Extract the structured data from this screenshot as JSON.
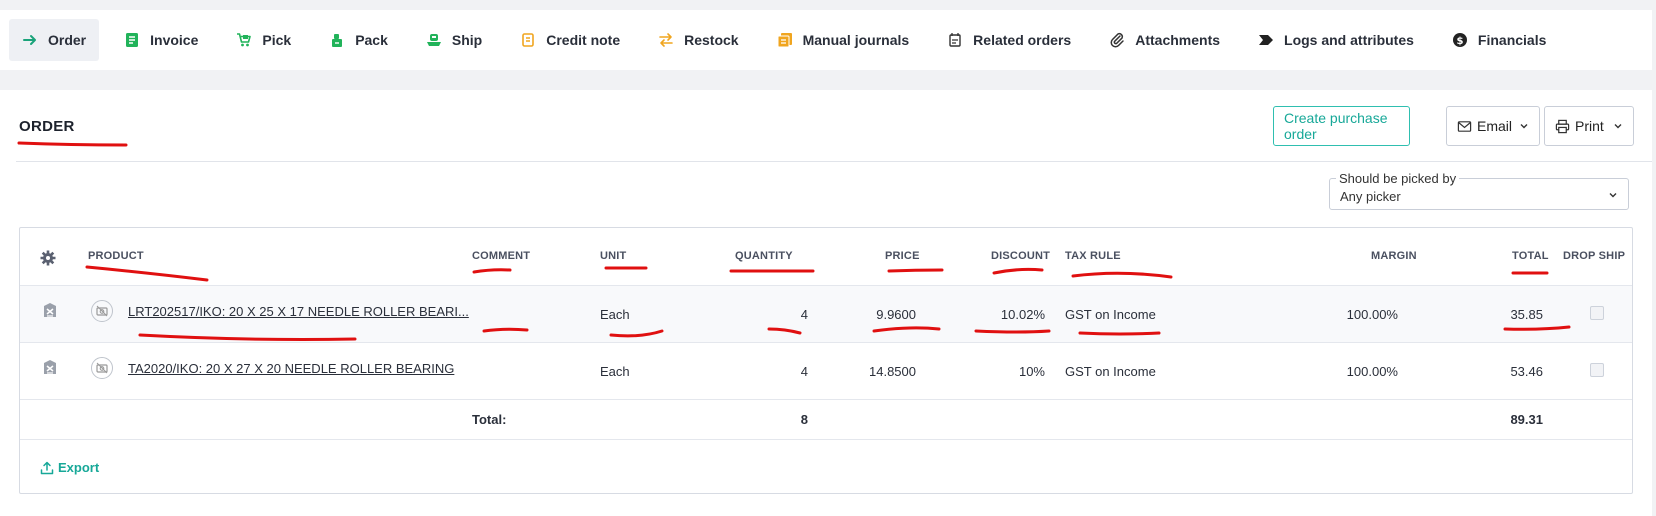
{
  "tabs": [
    {
      "label": "Order",
      "icon": "arrow-right-icon",
      "color": "#1aa37a"
    },
    {
      "label": "Invoice",
      "icon": "invoice-icon",
      "color": "#21b35a"
    },
    {
      "label": "Pick",
      "icon": "cart-icon",
      "color": "#21b35a"
    },
    {
      "label": "Pack",
      "icon": "box-icon",
      "color": "#21b35a"
    },
    {
      "label": "Ship",
      "icon": "ship-icon",
      "color": "#21b35a"
    },
    {
      "label": "Credit note",
      "icon": "credit-note-icon",
      "color": "#f0a51f"
    },
    {
      "label": "Restock",
      "icon": "swap-icon",
      "color": "#f0a51f"
    },
    {
      "label": "Manual journals",
      "icon": "journal-icon",
      "color": "#f0a51f"
    },
    {
      "label": "Related orders",
      "icon": "calendar-icon",
      "color": "#333"
    },
    {
      "label": "Attachments",
      "icon": "paperclip-icon",
      "color": "#333"
    },
    {
      "label": "Logs and attributes",
      "icon": "tag-icon",
      "color": "#222"
    },
    {
      "label": "Financials",
      "icon": "dollar-icon",
      "color": "#222"
    }
  ],
  "section": {
    "title": "ORDER",
    "create_po_label": "Create purchase order",
    "email_label": "Email",
    "print_label": "Print"
  },
  "picker": {
    "label": "Should be picked by",
    "value": "Any picker"
  },
  "table": {
    "headers": {
      "product": "PRODUCT",
      "comment": "COMMENT",
      "unit": "UNIT",
      "quantity": "QUANTITY",
      "price": "PRICE",
      "discount": "DISCOUNT",
      "tax_rule": "TAX RULE",
      "margin": "MARGIN",
      "total": "TOTAL",
      "drop_ship": "DROP SHIP"
    },
    "rows": [
      {
        "product": "LRT202517/IKO: 20 X 25 X 17 NEEDLE ROLLER BEARI...",
        "comment": "",
        "unit": "Each",
        "quantity": "4",
        "price": "9.9600",
        "discount": "10.02%",
        "tax_rule": "GST on Income",
        "margin": "100.00%",
        "total": "35.85"
      },
      {
        "product": "TA2020/IKO: 20 X 27 X 20 NEEDLE ROLLER BEARING",
        "comment": "",
        "unit": "Each",
        "quantity": "4",
        "price": "14.8500",
        "discount": "10%",
        "tax_rule": "GST on Income",
        "margin": "100.00%",
        "total": "53.46"
      }
    ],
    "footer": {
      "label": "Total:",
      "quantity": "8",
      "total": "89.31"
    }
  },
  "export_label": "Export",
  "accent_color": "#17a898",
  "annotation_color": "#e01010"
}
